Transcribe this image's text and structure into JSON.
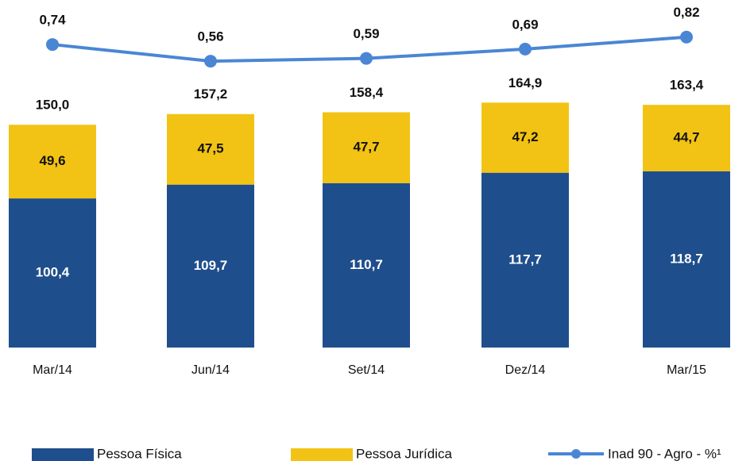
{
  "chart_data": {
    "type": "bar",
    "categories": [
      "Mar/14",
      "Jun/14",
      "Set/14",
      "Dez/14",
      "Mar/15"
    ],
    "ylim": [
      0,
      234
    ],
    "y2lim": [
      -2.53,
      1.22
    ],
    "series": [
      {
        "name": "Pessoa Física",
        "color": "#1f4e8c",
        "values": [
          100.4,
          109.7,
          110.7,
          117.7,
          118.7
        ],
        "value_labels": [
          "100,4",
          "109,7",
          "110,7",
          "117,7",
          "118,7"
        ]
      },
      {
        "name": "Pessoa Jurídica",
        "color": "#f2c314",
        "values": [
          49.6,
          47.5,
          47.7,
          47.2,
          44.7
        ],
        "value_labels": [
          "49,6",
          "47,5",
          "47,7",
          "47,2",
          "44,7"
        ]
      },
      {
        "name": "Inad 90 - Agro - %¹",
        "color": "#4a86d4",
        "type": "line",
        "axis": "y2",
        "values": [
          0.74,
          0.56,
          0.59,
          0.69,
          0.82
        ],
        "value_labels": [
          "0,74",
          "0,56",
          "0,59",
          "0,69",
          "0,82"
        ]
      }
    ],
    "totals": [
      150.0,
      157.2,
      158.4,
      164.9,
      163.4
    ],
    "total_labels": [
      "150,0",
      "157,2",
      "158,4",
      "164,9",
      "163,4"
    ]
  }
}
